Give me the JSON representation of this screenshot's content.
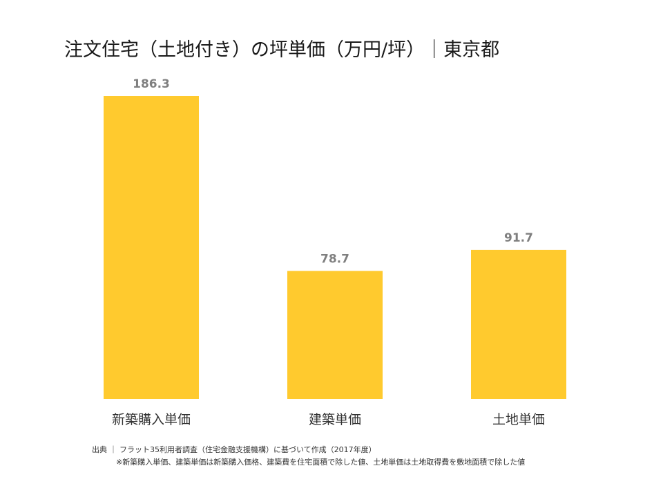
{
  "title": "注文住宅（土地付き）の坪単価（万円/坪）｜東京都",
  "chart_data": {
    "type": "bar",
    "categories": [
      "新築購入単価",
      "建築単価",
      "土地単価"
    ],
    "values": [
      186.3,
      78.7,
      91.7
    ],
    "value_labels": [
      "186.3",
      "78.7",
      "91.7"
    ],
    "title": "注文住宅（土地付き）の坪単価（万円/坪）｜東京都",
    "xlabel": "",
    "ylabel": "",
    "ylim": [
      0,
      186.3
    ],
    "grid": false,
    "bar_color": "#FFCA2E",
    "value_label_color": "#7F7F7F"
  },
  "footer": {
    "source": "出典 ｜ フラット35利用者調査（住宅金融支援機構）に基づいて作成（2017年度）",
    "note": "※新築購入単価、建築単価は新築購入価格、建築費を住宅面積で除した値、土地単価は土地取得費を敷地面積で除した値"
  }
}
